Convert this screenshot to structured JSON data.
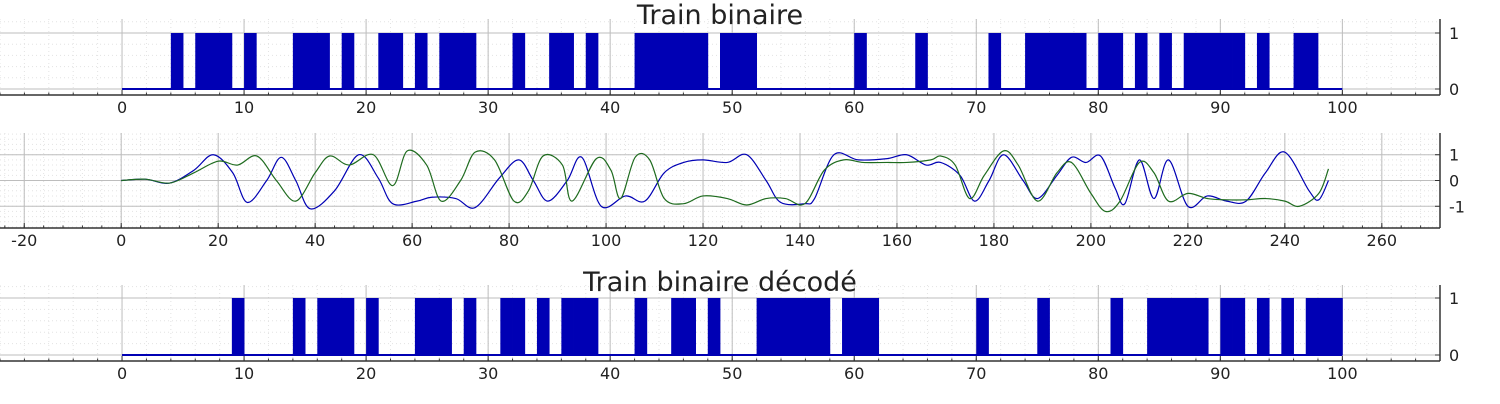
{
  "chart_data": [
    {
      "type": "bar",
      "title": "Train binaire",
      "xlim": [
        -10,
        108
      ],
      "ylim": [
        0,
        1
      ],
      "x_ticks": [
        "0",
        "10",
        "20",
        "30",
        "40",
        "50",
        "60",
        "70",
        "80",
        "90",
        "100"
      ],
      "y_ticks": [
        "0",
        "1"
      ],
      "color": "#0000b4",
      "grid": true,
      "x": [
        0,
        1,
        2,
        3,
        4,
        5,
        6,
        7,
        8,
        9,
        10,
        11,
        12,
        13,
        14,
        15,
        16,
        17,
        18,
        19,
        20,
        21,
        22,
        23,
        24,
        25,
        26,
        27,
        28,
        29,
        30,
        31,
        32,
        33,
        34,
        35,
        36,
        37,
        38,
        39,
        40,
        41,
        42,
        43,
        44,
        45,
        46,
        47,
        48,
        49,
        50,
        51,
        52,
        53,
        54,
        55,
        56,
        57,
        58,
        59,
        60,
        61,
        62,
        63,
        64,
        65,
        66,
        67,
        68,
        69,
        70,
        71,
        72,
        73,
        74,
        75,
        76,
        77,
        78,
        79,
        80,
        81,
        82,
        83,
        84,
        85,
        86,
        87,
        88,
        89,
        90,
        91,
        92,
        93,
        94,
        95,
        96,
        97,
        98,
        99
      ],
      "values": [
        0,
        0,
        0,
        0,
        1,
        0,
        1,
        1,
        1,
        0,
        1,
        0,
        0,
        0,
        1,
        1,
        1,
        0,
        1,
        0,
        0,
        1,
        1,
        0,
        1,
        0,
        1,
        1,
        1,
        0,
        0,
        0,
        1,
        0,
        0,
        1,
        1,
        0,
        1,
        0,
        0,
        0,
        1,
        1,
        1,
        1,
        1,
        1,
        0,
        1,
        1,
        1,
        0,
        0,
        0,
        0,
        0,
        0,
        0,
        0,
        1,
        0,
        0,
        0,
        0,
        1,
        0,
        0,
        0,
        0,
        0,
        1,
        0,
        0,
        1,
        1,
        1,
        1,
        1,
        0,
        1,
        1,
        0,
        1,
        0,
        1,
        0,
        1,
        1,
        1,
        1,
        1,
        0,
        1,
        0,
        0,
        1,
        1,
        0,
        0
      ]
    },
    {
      "type": "line",
      "title": "",
      "xlim": [
        -25,
        272
      ],
      "ylim": [
        -1.3,
        1.3
      ],
      "x_ticks": [
        "-20",
        "0",
        "20",
        "40",
        "60",
        "80",
        "100",
        "120",
        "140",
        "160",
        "180",
        "200",
        "220",
        "240",
        "260"
      ],
      "y_ticks": [
        "-1",
        "0",
        "1"
      ],
      "grid": true,
      "series": [
        {
          "color": "#0000b4",
          "points": [
            [
              0,
              0
            ],
            [
              5,
              0.05
            ],
            [
              10,
              -0.1
            ],
            [
              15,
              0.4
            ],
            [
              19,
              1
            ],
            [
              23,
              0.3
            ],
            [
              26,
              -0.85
            ],
            [
              30,
              0
            ],
            [
              33,
              0.9
            ],
            [
              36,
              0
            ],
            [
              39,
              -1.1
            ],
            [
              44,
              -0.4
            ],
            [
              49,
              1
            ],
            [
              53,
              0.1
            ],
            [
              56,
              -0.9
            ],
            [
              61,
              -0.8
            ],
            [
              64,
              -0.65
            ],
            [
              69,
              -0.7
            ],
            [
              73,
              -1.05
            ],
            [
              78,
              0.1
            ],
            [
              82,
              0.8
            ],
            [
              85,
              0
            ],
            [
              88,
              -0.8
            ],
            [
              92,
              0
            ],
            [
              95,
              0.9
            ],
            [
              99,
              -1
            ],
            [
              104,
              -0.6
            ],
            [
              108,
              -0.8
            ],
            [
              112,
              0.3
            ],
            [
              116,
              0.7
            ],
            [
              120,
              0.8
            ],
            [
              125,
              0.7
            ],
            [
              129,
              1
            ],
            [
              133,
              0
            ],
            [
              136,
              -0.85
            ],
            [
              141,
              -0.9
            ],
            [
              143,
              -0.7
            ],
            [
              147,
              1
            ],
            [
              152,
              0.8
            ],
            [
              158,
              0.85
            ],
            [
              162,
              1
            ],
            [
              166,
              0.6
            ],
            [
              169,
              0.7
            ],
            [
              173,
              0.2
            ],
            [
              176,
              -0.8
            ],
            [
              179,
              0
            ],
            [
              182,
              1
            ],
            [
              186,
              0
            ],
            [
              189,
              -0.7
            ],
            [
              193,
              0.2
            ],
            [
              196,
              0.9
            ],
            [
              199,
              0.7
            ],
            [
              202,
              0.95
            ],
            [
              205,
              -0.3
            ],
            [
              207,
              -0.9
            ],
            [
              210,
              0.8
            ],
            [
              213,
              -0.7
            ],
            [
              216,
              0.8
            ],
            [
              220,
              -1
            ],
            [
              224,
              -0.6
            ],
            [
              228,
              -0.8
            ],
            [
              232,
              -0.8
            ],
            [
              236,
              0.3
            ],
            [
              240,
              1.1
            ],
            [
              245,
              -0.4
            ],
            [
              247,
              -0.75
            ],
            [
              249,
              0
            ]
          ]
        },
        {
          "color": "#1e6b1e",
          "points": [
            [
              0,
              0
            ],
            [
              5,
              0.05
            ],
            [
              10,
              -0.1
            ],
            [
              15,
              0.3
            ],
            [
              20,
              0.75
            ],
            [
              24,
              0.6
            ],
            [
              28,
              0.95
            ],
            [
              32,
              0
            ],
            [
              36,
              -0.8
            ],
            [
              40,
              0.3
            ],
            [
              43,
              0.95
            ],
            [
              47,
              0.6
            ],
            [
              52,
              1
            ],
            [
              56,
              -0.2
            ],
            [
              59,
              1.15
            ],
            [
              63,
              0.6
            ],
            [
              66,
              -0.8
            ],
            [
              70,
              0
            ],
            [
              73,
              1.1
            ],
            [
              77,
              0.8
            ],
            [
              81,
              -0.8
            ],
            [
              84,
              -0.4
            ],
            [
              87,
              0.95
            ],
            [
              91,
              0.6
            ],
            [
              93,
              -0.8
            ],
            [
              98,
              0.85
            ],
            [
              101,
              0.4
            ],
            [
              103,
              -0.7
            ],
            [
              106,
              0.9
            ],
            [
              109,
              0.8
            ],
            [
              112,
              -0.7
            ],
            [
              116,
              -0.9
            ],
            [
              120,
              -0.6
            ],
            [
              125,
              -0.7
            ],
            [
              129,
              -0.95
            ],
            [
              133,
              -0.7
            ],
            [
              137,
              -0.7
            ],
            [
              141,
              -0.9
            ],
            [
              145,
              0.4
            ],
            [
              149,
              0.8
            ],
            [
              153,
              0.7
            ],
            [
              158,
              0.7
            ],
            [
              162,
              0.7
            ],
            [
              167,
              0.8
            ],
            [
              169,
              0.95
            ],
            [
              172,
              0.6
            ],
            [
              175,
              -0.7
            ],
            [
              178,
              0.2
            ],
            [
              182,
              1.15
            ],
            [
              185,
              0.6
            ],
            [
              189,
              -0.8
            ],
            [
              193,
              0.3
            ],
            [
              196,
              0.7
            ],
            [
              200,
              -0.5
            ],
            [
              203,
              -1.2
            ],
            [
              206,
              -0.8
            ],
            [
              210,
              0.7
            ],
            [
              213,
              0.3
            ],
            [
              216,
              -0.8
            ],
            [
              220,
              -0.5
            ],
            [
              224,
              -0.7
            ],
            [
              228,
              -0.75
            ],
            [
              232,
              -0.75
            ],
            [
              236,
              -0.7
            ],
            [
              240,
              -0.8
            ],
            [
              243,
              -1
            ],
            [
              247,
              -0.5
            ],
            [
              249,
              0.45
            ]
          ]
        }
      ]
    },
    {
      "type": "bar",
      "title": "Train binaire décodé",
      "xlim": [
        -10,
        108
      ],
      "ylim": [
        0,
        1
      ],
      "x_ticks": [
        "0",
        "10",
        "20",
        "30",
        "40",
        "50",
        "60",
        "70",
        "80",
        "90",
        "100"
      ],
      "y_ticks": [
        "0",
        "1"
      ],
      "color": "#0000b4",
      "grid": true,
      "x": [
        0,
        1,
        2,
        3,
        4,
        5,
        6,
        7,
        8,
        9,
        10,
        11,
        12,
        13,
        14,
        15,
        16,
        17,
        18,
        19,
        20,
        21,
        22,
        23,
        24,
        25,
        26,
        27,
        28,
        29,
        30,
        31,
        32,
        33,
        34,
        35,
        36,
        37,
        38,
        39,
        40,
        41,
        42,
        43,
        44,
        45,
        46,
        47,
        48,
        49,
        50,
        51,
        52,
        53,
        54,
        55,
        56,
        57,
        58,
        59,
        60,
        61,
        62,
        63,
        64,
        65,
        66,
        67,
        68,
        69,
        70,
        71,
        72,
        73,
        74,
        75,
        76,
        77,
        78,
        79,
        80,
        81,
        82,
        83,
        84,
        85,
        86,
        87,
        88,
        89,
        90,
        91,
        92,
        93,
        94,
        95,
        96,
        97,
        98,
        99
      ],
      "values": [
        0,
        0,
        0,
        0,
        0,
        0,
        0,
        0,
        0,
        1,
        0,
        0,
        0,
        0,
        1,
        0,
        1,
        1,
        1,
        0,
        1,
        0,
        0,
        0,
        1,
        1,
        1,
        0,
        1,
        0,
        0,
        1,
        1,
        0,
        1,
        0,
        1,
        1,
        1,
        0,
        0,
        0,
        1,
        0,
        0,
        1,
        1,
        0,
        1,
        0,
        0,
        0,
        1,
        1,
        1,
        1,
        1,
        1,
        0,
        1,
        1,
        1,
        0,
        0,
        0,
        0,
        0,
        0,
        0,
        0,
        1,
        0,
        0,
        0,
        0,
        1,
        0,
        0,
        0,
        0,
        0,
        1,
        0,
        0,
        1,
        1,
        1,
        1,
        1,
        0,
        1,
        1,
        0,
        1,
        0,
        1,
        0,
        1,
        1,
        1
      ]
    }
  ]
}
